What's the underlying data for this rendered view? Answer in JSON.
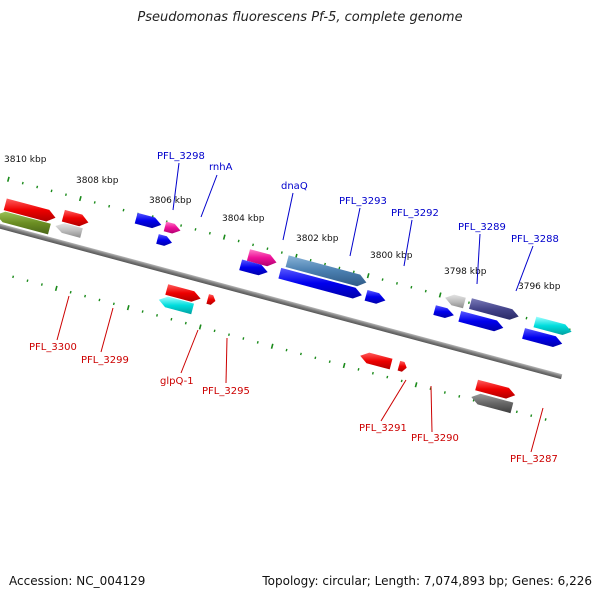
{
  "title": "Pseudomonas fluorescens Pf-5, complete genome",
  "footer": {
    "accession": "Accession: NC_004129",
    "summary": "Topology: circular; Length: 7,074,893 bp; Genes: 6,226"
  },
  "colors": {
    "label_forward": "#0000cc",
    "label_reverse": "#cc0000",
    "tick": "#1a8a1a",
    "backbone": "#8a8a8a"
  },
  "kbp_labels": [
    "3810 kbp",
    "3808 kbp",
    "3806 kbp",
    "3804 kbp",
    "3802 kbp",
    "3800 kbp",
    "3798 kbp",
    "3796 kbp"
  ],
  "forward_gene_labels": [
    "PFL_3298",
    "rnhA",
    "dnaQ",
    "PFL_3293",
    "PFL_3292",
    "PFL_3289",
    "PFL_3288"
  ],
  "reverse_gene_labels": [
    "PFL_3300",
    "PFL_3299",
    "glpQ-1",
    "PFL_3295",
    "PFL_3291",
    "PFL_3290",
    "PFL_3287"
  ]
}
